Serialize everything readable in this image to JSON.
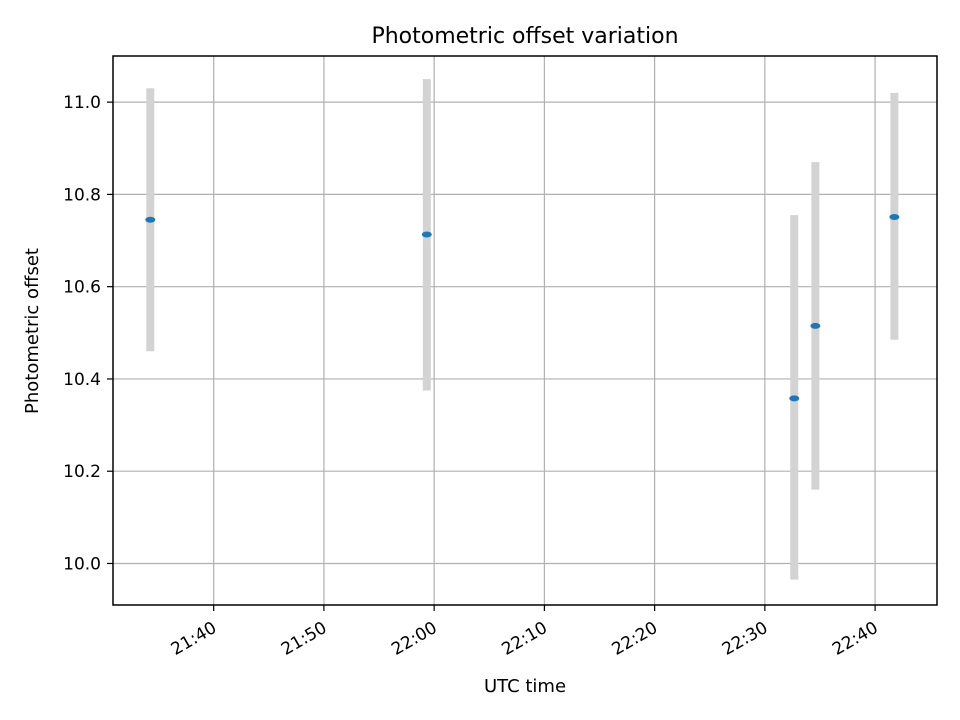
{
  "chart_data": {
    "type": "scatter",
    "title": "Photometric offset variation",
    "xlabel": "UTC time",
    "ylabel": "Photometric offset",
    "x_ticks": [
      "21:40",
      "21:50",
      "22:00",
      "22:10",
      "22:20",
      "22:30",
      "22:40"
    ],
    "y_ticks": [
      "10.0",
      "10.2",
      "10.4",
      "10.6",
      "10.8",
      "11.0"
    ],
    "xlim": [
      "21:30:52",
      "22:45:37"
    ],
    "ylim": [
      9.91,
      11.1
    ],
    "grid": true,
    "points": [
      {
        "x": "21:34:15",
        "y": 10.745,
        "yerr_low": 10.46,
        "yerr_high": 11.03
      },
      {
        "x": "21:59:20",
        "y": 10.713,
        "yerr_low": 10.375,
        "yerr_high": 11.05
      },
      {
        "x": "22:32:40",
        "y": 10.358,
        "yerr_low": 9.965,
        "yerr_high": 10.755
      },
      {
        "x": "22:34:35",
        "y": 10.515,
        "yerr_low": 10.16,
        "yerr_high": 10.87
      },
      {
        "x": "22:41:45",
        "y": 10.751,
        "yerr_low": 10.485,
        "yerr_high": 11.02
      }
    ],
    "colors": {
      "point": "#1f77b4",
      "errorbar": "#d3d3d3",
      "grid": "#b0b0b0"
    }
  }
}
